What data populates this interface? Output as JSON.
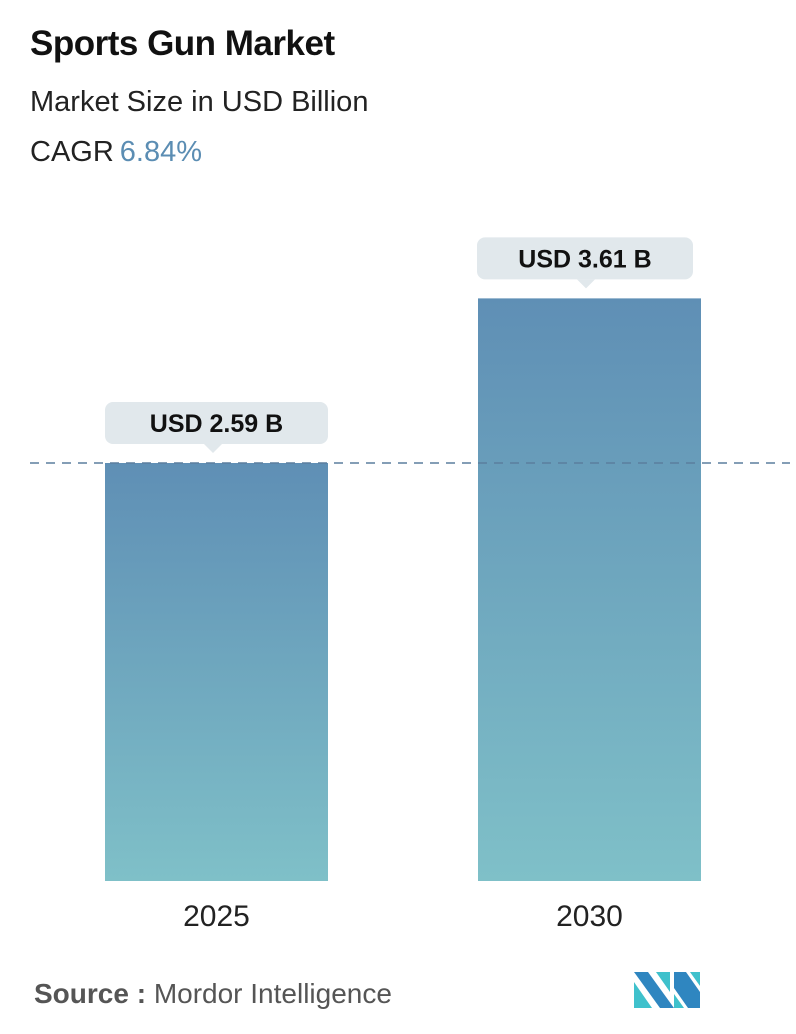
{
  "header": {
    "title": "Sports Gun Market",
    "subtitle": "Market Size in USD Billion",
    "cagr_label": "CAGR",
    "cagr_value": "6.84%"
  },
  "chart_data": {
    "type": "bar",
    "categories": [
      "2025",
      "2030"
    ],
    "values": [
      2.59,
      3.61
    ],
    "data_labels": [
      "USD 2.59 B",
      "USD 3.61 B"
    ],
    "title": "Sports Gun Market",
    "ylabel": "Market Size in USD Billion",
    "reference_line": {
      "value": 2.59,
      "style": "dashed"
    },
    "grid": false,
    "colors": {
      "bar_top": "#5f8fb5",
      "bar_bottom": "#7fc0c8",
      "label_bg": "#e1e8ec",
      "ref_line": "#5b7f9e"
    }
  },
  "footer": {
    "source_label": "Source :",
    "source_value": "Mordor Intelligence",
    "logo": "mordor-intelligence-logo"
  }
}
